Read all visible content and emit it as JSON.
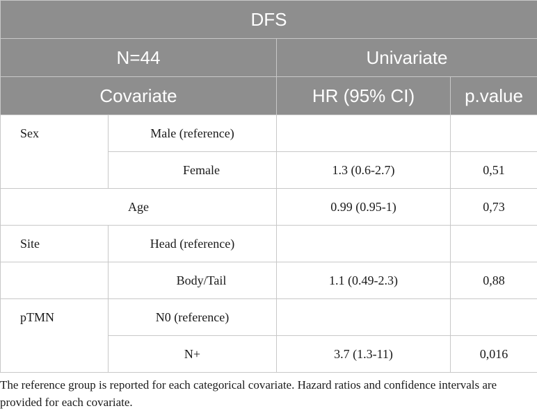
{
  "table": {
    "title": "DFS",
    "n_label": "N=44",
    "univariate_label": "Univariate",
    "covariate_header": "Covariate",
    "hr_header": "HR (95% CI)",
    "p_header": "p.value",
    "rows": [
      {
        "group": "Sex",
        "level": "Male (reference)",
        "hr": "",
        "p": ""
      },
      {
        "group": "",
        "level": "Female",
        "hr": "1.3 (0.6-2.7)",
        "p": "0,51"
      },
      {
        "label": "Age",
        "hr": "0.99 (0.95-1)",
        "p": "0,73"
      },
      {
        "group": "Site",
        "level": "Head (reference)",
        "hr": "",
        "p": ""
      },
      {
        "group": "",
        "level": "Body/Tail",
        "hr": "1.1 (0.49-2.3)",
        "p": "0,88"
      },
      {
        "group": "pTMN",
        "level": "N0 (reference)",
        "hr": "",
        "p": ""
      },
      {
        "group": "",
        "level": "N+",
        "hr": "3.7 (1.3-11)",
        "p": "0,016"
      }
    ]
  },
  "footnote": "The reference group is reported for each categorical covariate. Hazard ratios and confidence intervals are provided for each covariate."
}
